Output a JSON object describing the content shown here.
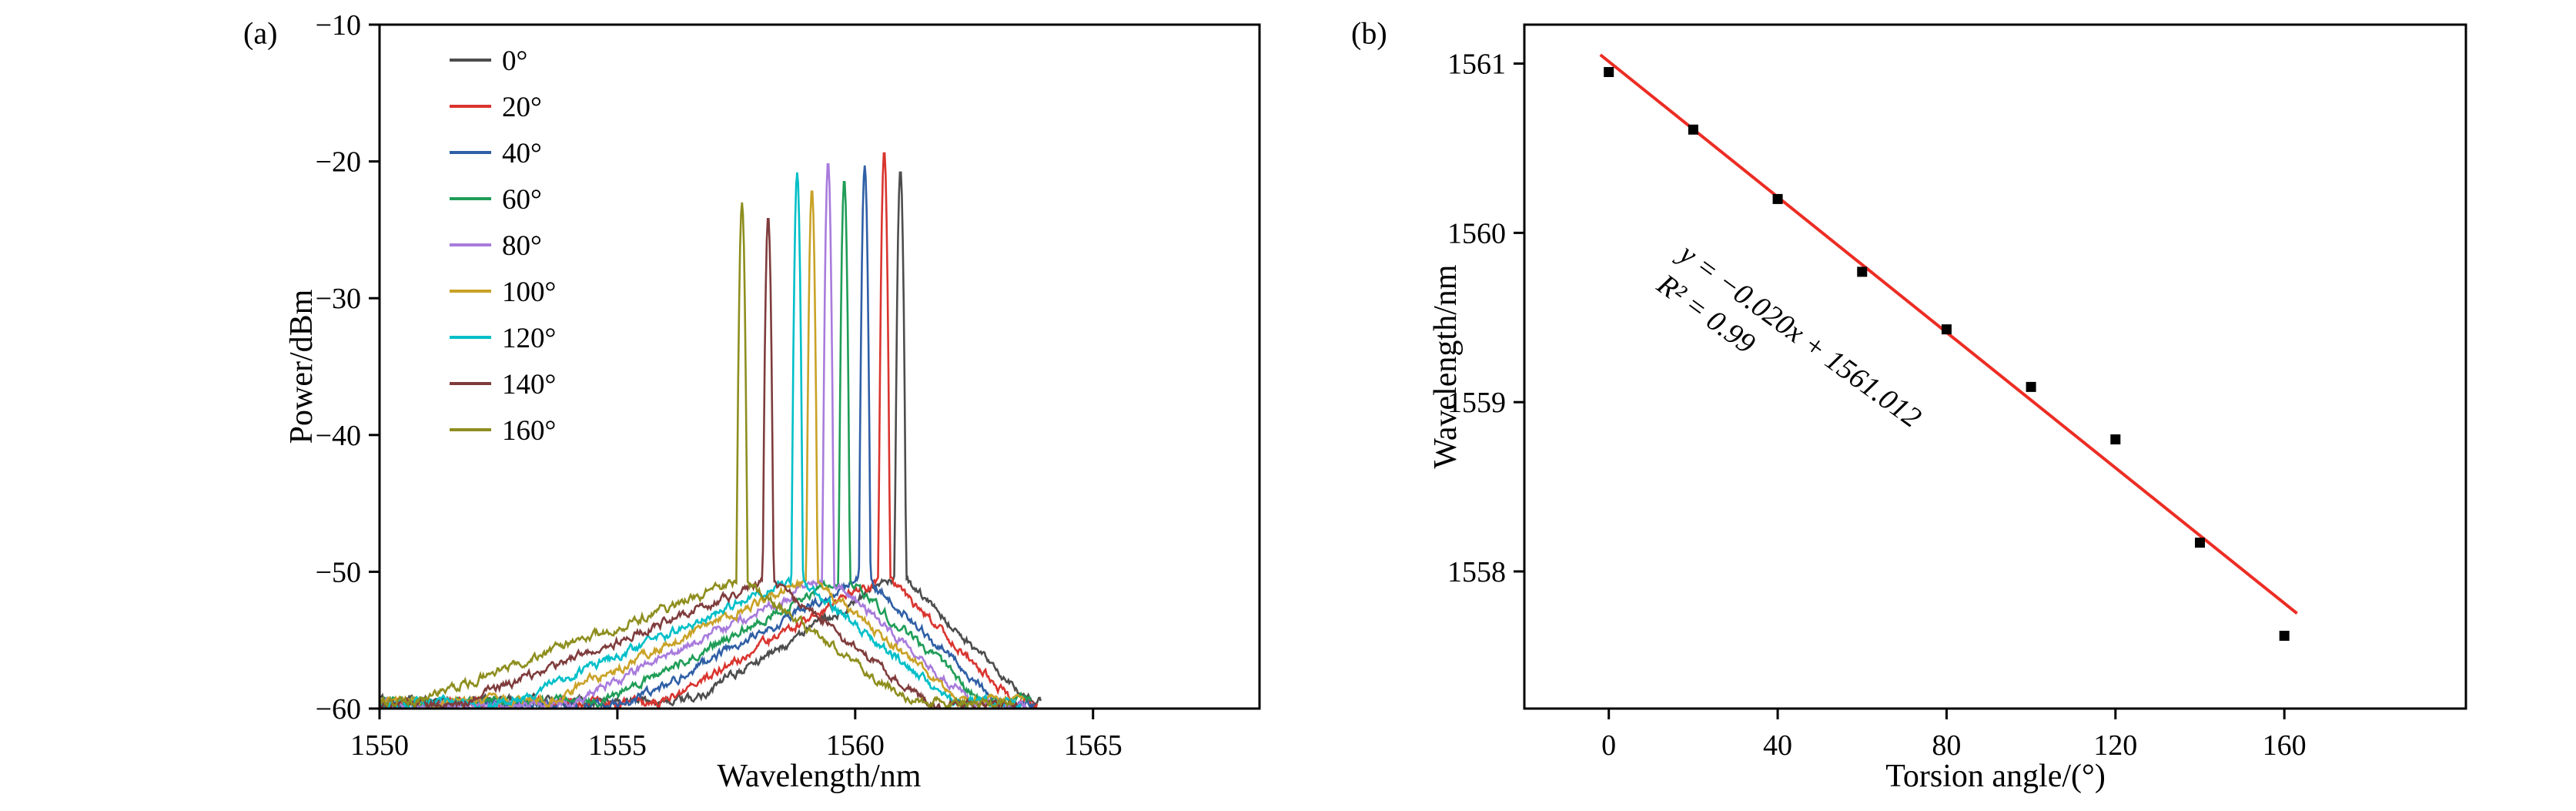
{
  "figure": {
    "background": "#ffffff",
    "axis_color": "#000000"
  },
  "chart_data": [
    {
      "type": "line",
      "panel_tag": "(a)",
      "xlabel": "Wavelength/nm",
      "ylabel": "Power/dBm",
      "xlim": [
        1550,
        1568.5
      ],
      "ylim": [
        -60,
        -10
      ],
      "xticks": [
        1550,
        1555,
        1560,
        1565
      ],
      "yticks": [
        -10,
        -20,
        -30,
        -40,
        -50,
        -60
      ],
      "grid": false,
      "legend_position": "upper-left-inside",
      "baseline_dbm": -59.4,
      "series": [
        {
          "name": "0°",
          "color": "#4d4d4d",
          "peak_nm": 1560.95,
          "peak_dbm": -20.6,
          "pedestal_dbm": -50.2
        },
        {
          "name": "20°",
          "color": "#d9352f",
          "peak_nm": 1560.61,
          "peak_dbm": -19.2,
          "pedestal_dbm": -50.3
        },
        {
          "name": "40°",
          "color": "#2f5fa5",
          "peak_nm": 1560.2,
          "peak_dbm": -20.3,
          "pedestal_dbm": -50.3
        },
        {
          "name": "60°",
          "color": "#1f9d57",
          "peak_nm": 1559.77,
          "peak_dbm": -21.3,
          "pedestal_dbm": -50.4
        },
        {
          "name": "80°",
          "color": "#a87bdc",
          "peak_nm": 1559.43,
          "peak_dbm": -20.0,
          "pedestal_dbm": -50.4
        },
        {
          "name": "100°",
          "color": "#c9a227",
          "peak_nm": 1559.09,
          "peak_dbm": -22.0,
          "pedestal_dbm": -50.5
        },
        {
          "name": "120°",
          "color": "#00bfc8",
          "peak_nm": 1558.78,
          "peak_dbm": -20.8,
          "pedestal_dbm": -50.5
        },
        {
          "name": "140°",
          "color": "#7f3c3c",
          "peak_nm": 1558.17,
          "peak_dbm": -24.0,
          "pedestal_dbm": -50.6
        },
        {
          "name": "160°",
          "color": "#8e8e1f",
          "peak_nm": 1557.62,
          "peak_dbm": -23.0,
          "pedestal_dbm": -50.6
        }
      ]
    },
    {
      "type": "scatter",
      "panel_tag": "(b)",
      "xlabel": "Torsion angle/(°)",
      "ylabel": "Wavelength/nm",
      "xlim": [
        -20,
        203
      ],
      "ylim": [
        1557.19,
        1561.23
      ],
      "xticks": [
        0,
        40,
        80,
        120,
        160
      ],
      "yticks": [
        1558,
        1559,
        1560,
        1561
      ],
      "grid": false,
      "marker": "square",
      "marker_color": "#000000",
      "x": [
        0,
        20,
        40,
        60,
        80,
        100,
        120,
        140,
        160
      ],
      "y": [
        1560.95,
        1560.61,
        1560.2,
        1559.77,
        1559.43,
        1559.09,
        1558.78,
        1558.17,
        1557.62
      ],
      "fit": {
        "slope": -0.02,
        "intercept": 1561.012,
        "r_squared": 0.99,
        "color": "#ec2d24",
        "x_start": -2,
        "x_end": 163,
        "label_line1": "y = −0.020x + 1561.012",
        "label_line2": "R² = 0.99"
      }
    }
  ]
}
